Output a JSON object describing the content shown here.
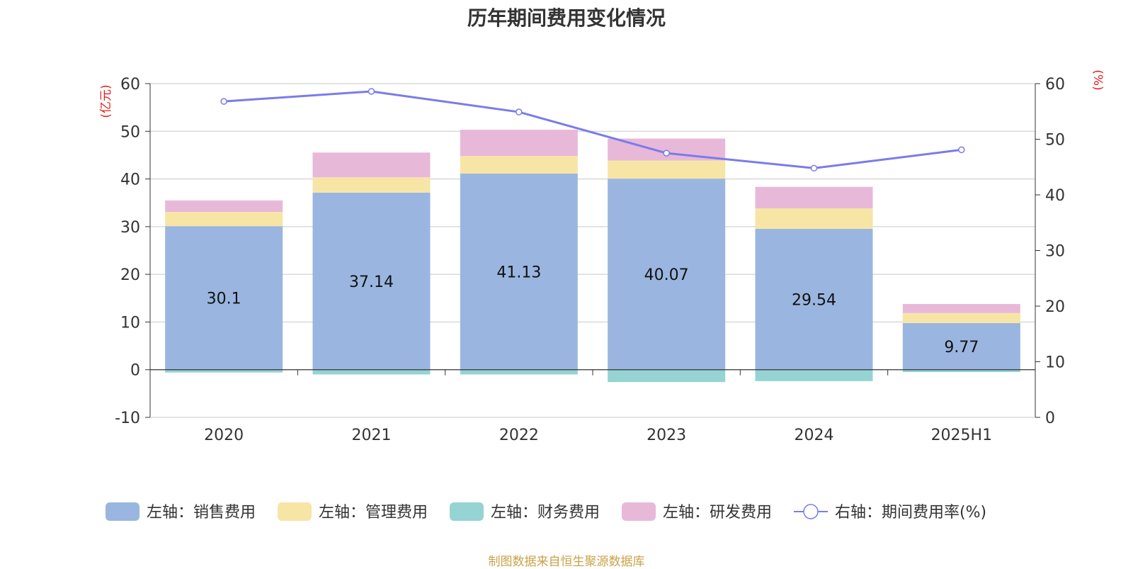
{
  "title": "历年期间费用变化情况",
  "source": "制图数据来自恒生聚源数据库",
  "colors": {
    "sales": "#9ab6e0",
    "admin": "#f7e5a6",
    "finance": "#96d3d3",
    "rd": "#e8b8d9",
    "rate": "#7a7cea",
    "axis_unit": "#e0211b"
  },
  "chart_data": {
    "type": "bar",
    "stacked": true,
    "categories": [
      "2020",
      "2021",
      "2022",
      "2023",
      "2024",
      "2025H1"
    ],
    "left_axis": {
      "unit": "(亿元)",
      "ylim": [
        -10,
        60
      ],
      "ticks": [
        "-10",
        "0",
        "10",
        "20",
        "30",
        "40",
        "50",
        "60"
      ]
    },
    "right_axis": {
      "unit": "(%)",
      "ylim": [
        0,
        60
      ],
      "ticks": [
        "0",
        "10",
        "20",
        "30",
        "40",
        "50",
        "60"
      ]
    },
    "series": [
      {
        "name": "左轴：销售费用",
        "key": "sales",
        "axis": "left",
        "values": [
          30.1,
          37.14,
          41.13,
          40.07,
          29.54,
          9.77
        ],
        "labels": [
          "30.1",
          "37.14",
          "41.13",
          "40.07",
          "29.54",
          "9.77"
        ]
      },
      {
        "name": "左轴：管理费用",
        "key": "admin",
        "axis": "left",
        "values": [
          3.0,
          3.2,
          3.7,
          3.8,
          4.3,
          2.1
        ]
      },
      {
        "name": "左轴：财务费用",
        "key": "finance",
        "axis": "left",
        "values": [
          -0.6,
          -1.0,
          -1.0,
          -2.6,
          -2.4,
          -0.5
        ]
      },
      {
        "name": "左轴：研发费用",
        "key": "rd",
        "axis": "left",
        "values": [
          2.4,
          5.2,
          5.5,
          4.6,
          4.5,
          1.9
        ]
      },
      {
        "name": "右轴：期间费用率(%)",
        "key": "rate",
        "axis": "right",
        "type": "line",
        "values": [
          56.8,
          58.6,
          54.9,
          47.5,
          44.8,
          48.1
        ]
      }
    ],
    "grid": true,
    "legend": "bottom"
  }
}
